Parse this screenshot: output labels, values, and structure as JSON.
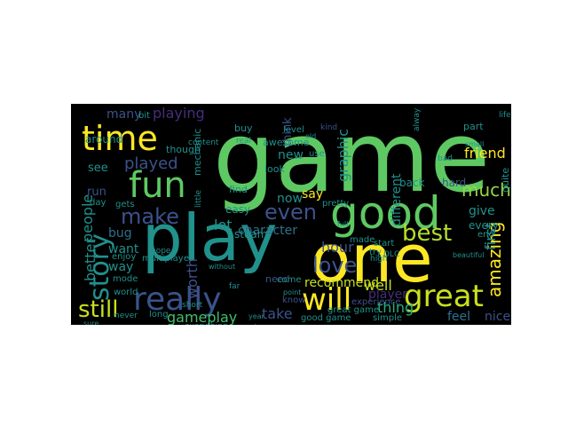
{
  "wordcloud": {
    "background_color": "#000000",
    "colormap": "viridis",
    "words": [
      {
        "text": "game",
        "color": "#5ec962"
      },
      {
        "text": "play",
        "color": "#21918c"
      },
      {
        "text": "one",
        "color": "#fde725"
      },
      {
        "text": "good",
        "color": "#5ec962"
      },
      {
        "text": "time",
        "color": "#fde725"
      },
      {
        "text": "fun",
        "color": "#5ec962"
      },
      {
        "text": "really",
        "color": "#3b528b"
      },
      {
        "text": "story",
        "color": "#21918c"
      },
      {
        "text": "will",
        "color": "#fde725"
      },
      {
        "text": "great",
        "color": "#c8e020"
      },
      {
        "text": "best",
        "color": "#b5de2b"
      },
      {
        "text": "still",
        "color": "#c8e020"
      },
      {
        "text": "even",
        "color": "#3b528b"
      },
      {
        "text": "love",
        "color": "#3b528b"
      },
      {
        "text": "make",
        "color": "#3b528b"
      },
      {
        "text": "amazing",
        "color": "#fde725"
      },
      {
        "text": "played",
        "color": "#3b528b"
      },
      {
        "text": "much",
        "color": "#8fd744"
      },
      {
        "text": "character",
        "color": "#2c728e"
      },
      {
        "text": "playing",
        "color": "#472d7b"
      },
      {
        "text": "better",
        "color": "#21918c"
      },
      {
        "text": "people",
        "color": "#21918c"
      },
      {
        "text": "friend",
        "color": "#fde725"
      },
      {
        "text": "graphic",
        "color": "#21918c"
      },
      {
        "text": "hour",
        "color": "#3b528b"
      },
      {
        "text": "well",
        "color": "#c8e020"
      },
      {
        "text": "thing",
        "color": "#28ae80"
      },
      {
        "text": "gameplay",
        "color": "#44bf70"
      },
      {
        "text": "first",
        "color": "#21918c"
      },
      {
        "text": "recommend",
        "color": "#c8e020"
      },
      {
        "text": "worth",
        "color": "#3b528b"
      },
      {
        "text": "player",
        "color": "#472d7b"
      },
      {
        "text": "take",
        "color": "#3b528b"
      },
      {
        "text": "feel",
        "color": "#2c728e"
      },
      {
        "text": "nice",
        "color": "#3b528b"
      },
      {
        "text": "say",
        "color": "#fde725"
      },
      {
        "text": "many",
        "color": "#3b528b"
      },
      {
        "text": "lot",
        "color": "#21918c"
      },
      {
        "text": "bug",
        "color": "#2c728e"
      },
      {
        "text": "want",
        "color": "#21918c"
      },
      {
        "text": "way",
        "color": "#21918c"
      },
      {
        "text": "run",
        "color": "#3b528b"
      },
      {
        "text": "see",
        "color": "#21918c"
      },
      {
        "text": "around",
        "color": "#21918c"
      },
      {
        "text": "new",
        "color": "#21918c"
      },
      {
        "text": "now",
        "color": "#21918c"
      },
      {
        "text": "give",
        "color": "#21918c"
      },
      {
        "text": "every",
        "color": "#21918c"
      },
      {
        "text": "different",
        "color": "#21918c"
      },
      {
        "text": "think",
        "color": "#3b528b"
      },
      {
        "text": "back",
        "color": "#21918c"
      },
      {
        "text": "hard",
        "color": "#3b528b"
      },
      {
        "text": "steam",
        "color": "#21918c"
      },
      {
        "text": "easy",
        "color": "#21918c"
      },
      {
        "text": "awesome",
        "color": "#21918c"
      },
      {
        "text": "look",
        "color": "#21918c"
      },
      {
        "text": "need",
        "color": "#3b528b"
      },
      {
        "text": "find",
        "color": "#21918c"
      },
      {
        "text": "buy",
        "color": "#21918c"
      },
      {
        "text": "though",
        "color": "#21918c"
      },
      {
        "text": "gets",
        "color": "#21918c"
      },
      {
        "text": "bit",
        "color": "#21918c"
      },
      {
        "text": "quite",
        "color": "#21918c"
      },
      {
        "text": "part",
        "color": "#21918c"
      },
      {
        "text": "made",
        "color": "#21918c"
      },
      {
        "text": "start",
        "color": "#21918c"
      },
      {
        "text": "day",
        "color": "#21918c"
      },
      {
        "text": "mode",
        "color": "#21918c"
      },
      {
        "text": "enjoy",
        "color": "#21918c"
      },
      {
        "text": "world",
        "color": "#21918c"
      },
      {
        "text": "know",
        "color": "#3b528b"
      },
      {
        "text": "experience",
        "color": "#3b528b"
      },
      {
        "text": "come",
        "color": "#21918c"
      },
      {
        "text": "use",
        "color": "#21918c"
      },
      {
        "text": "level",
        "color": "#21918c"
      },
      {
        "text": "end",
        "color": "#21918c"
      },
      {
        "text": "great game",
        "color": "#21918c"
      },
      {
        "text": "good game",
        "color": "#21918c"
      },
      {
        "text": "simple",
        "color": "#21918c"
      },
      {
        "text": "pretty",
        "color": "#21918c"
      },
      {
        "text": "long",
        "color": "#21918c"
      },
      {
        "text": "multiplayer",
        "color": "#21918c"
      },
      {
        "text": "mechanic",
        "color": "#21918c"
      },
      {
        "text": "little",
        "color": "#21918c"
      },
      {
        "text": "real",
        "color": "#21918c"
      },
      {
        "text": "alway",
        "color": "#21918c"
      },
      {
        "text": "try",
        "color": "#21918c"
      },
      {
        "text": "kind",
        "color": "#3b528b"
      },
      {
        "text": "content",
        "color": "#21918c"
      },
      {
        "text": "everything",
        "color": "#21918c"
      },
      {
        "text": "almost",
        "color": "#21918c"
      },
      {
        "text": "never",
        "color": "#21918c"
      },
      {
        "text": "high",
        "color": "#21918c"
      },
      {
        "text": "hope",
        "color": "#21918c"
      },
      {
        "text": "short",
        "color": "#21918c"
      },
      {
        "text": "bad",
        "color": "#21918c"
      },
      {
        "text": "life",
        "color": "#21918c"
      },
      {
        "text": "DLC",
        "color": "#21918c"
      },
      {
        "text": "sure",
        "color": "#21918c"
      },
      {
        "text": "point",
        "color": "#21918c"
      },
      {
        "text": "beautiful",
        "color": "#21918c"
      },
      {
        "text": "far",
        "color": "#21918c"
      },
      {
        "text": "old",
        "color": "#21918c"
      },
      {
        "text": "year",
        "color": "#21918c"
      },
      {
        "text": "without",
        "color": "#21918c"
      },
      {
        "text": "small",
        "color": "#21918c"
      },
      {
        "text": "full",
        "color": "#21918c"
      }
    ]
  }
}
